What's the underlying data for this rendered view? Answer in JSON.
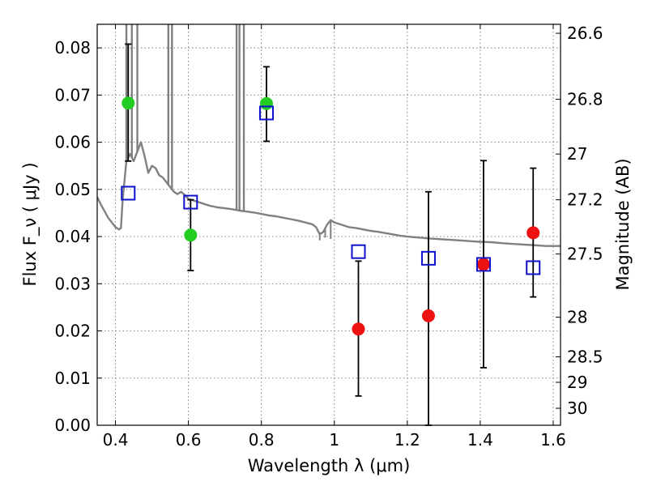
{
  "chart_data": {
    "type": "scatter",
    "xlabel": "Wavelength  λ (μm)",
    "ylabel": "Flux  F_ν  ( μJy )",
    "ylabel_right": "Magnitude (AB)",
    "xlim": [
      0.35,
      1.62
    ],
    "ylim": [
      0.0,
      0.085
    ],
    "grid": true,
    "x_ticks": [
      0.4,
      0.6,
      0.8,
      1.0,
      1.2,
      1.4,
      1.6
    ],
    "x_tick_labels": [
      "0.4",
      "0.6",
      "0.8",
      "1",
      "1.2",
      "1.4",
      "1.6"
    ],
    "y_ticks": [
      0.0,
      0.01,
      0.02,
      0.03,
      0.04,
      0.05,
      0.06,
      0.07,
      0.08
    ],
    "y_tick_labels": [
      "0.00",
      "0.01",
      "0.02",
      "0.03",
      "0.04",
      "0.05",
      "0.06",
      "0.07",
      "0.08"
    ],
    "right_ticks": [
      {
        "label": "26.6",
        "flux": 0.0831
      },
      {
        "label": "26.8",
        "flux": 0.0691
      },
      {
        "label": "27",
        "flux": 0.0575
      },
      {
        "label": "27.2",
        "flux": 0.0478
      },
      {
        "label": "27.5",
        "flux": 0.0363
      },
      {
        "label": "28",
        "flux": 0.0229
      },
      {
        "label": "28.5",
        "flux": 0.0145
      },
      {
        "label": "29",
        "flux": 0.0091
      },
      {
        "label": "30",
        "flux": 0.0036
      }
    ],
    "series": [
      {
        "marker": "circle",
        "color": "#22cc22",
        "points": [
          {
            "x": 0.435,
            "y": 0.0683,
            "err_low": 0.056,
            "err_high": 0.0808
          },
          {
            "x": 0.606,
            "y": 0.0403,
            "err_low": 0.0328,
            "err_high": 0.0478
          },
          {
            "x": 0.814,
            "y": 0.0682,
            "err_low": 0.0602,
            "err_high": 0.076
          }
        ]
      },
      {
        "marker": "circle",
        "color": "#ee1111",
        "points": [
          {
            "x": 1.066,
            "y": 0.0204,
            "err_low": 0.0062,
            "err_high": 0.0348
          },
          {
            "x": 1.258,
            "y": 0.0232,
            "err_low": 0.0,
            "err_high": 0.0495
          },
          {
            "x": 1.409,
            "y": 0.0341,
            "err_low": 0.0122,
            "err_high": 0.0561
          },
          {
            "x": 1.545,
            "y": 0.0408,
            "err_low": 0.0272,
            "err_high": 0.0545
          }
        ]
      },
      {
        "marker": "square-open",
        "color": "#1111cc",
        "points": [
          {
            "x": 0.435,
            "y": 0.0492
          },
          {
            "x": 0.606,
            "y": 0.0473
          },
          {
            "x": 0.814,
            "y": 0.0662
          },
          {
            "x": 1.066,
            "y": 0.0368
          },
          {
            "x": 1.258,
            "y": 0.0354
          },
          {
            "x": 1.409,
            "y": 0.0341
          },
          {
            "x": 1.545,
            "y": 0.0334
          }
        ]
      }
    ],
    "model_curve": {
      "color": "#808080",
      "points": [
        [
          0.35,
          0.0484
        ],
        [
          0.36,
          0.0468
        ],
        [
          0.38,
          0.044
        ],
        [
          0.4,
          0.042
        ],
        [
          0.41,
          0.0415
        ],
        [
          0.415,
          0.0418
        ],
        [
          0.42,
          0.048
        ],
        [
          0.425,
          0.052
        ],
        [
          0.43,
          0.056
        ],
        [
          0.44,
          0.0575
        ],
        [
          0.45,
          0.056
        ],
        [
          0.46,
          0.058
        ],
        [
          0.47,
          0.06
        ],
        [
          0.48,
          0.057
        ],
        [
          0.49,
          0.0535
        ],
        [
          0.5,
          0.055
        ],
        [
          0.51,
          0.0545
        ],
        [
          0.52,
          0.053
        ],
        [
          0.53,
          0.0525
        ],
        [
          0.54,
          0.0515
        ],
        [
          0.55,
          0.0505
        ],
        [
          0.56,
          0.0495
        ],
        [
          0.57,
          0.049
        ],
        [
          0.58,
          0.0495
        ],
        [
          0.59,
          0.0488
        ],
        [
          0.6,
          0.048
        ],
        [
          0.62,
          0.0475
        ],
        [
          0.64,
          0.047
        ],
        [
          0.66,
          0.0465
        ],
        [
          0.68,
          0.0462
        ],
        [
          0.7,
          0.046
        ],
        [
          0.72,
          0.0458
        ],
        [
          0.74,
          0.0455
        ],
        [
          0.76,
          0.0453
        ],
        [
          0.78,
          0.0451
        ],
        [
          0.8,
          0.0448
        ],
        [
          0.82,
          0.0445
        ],
        [
          0.84,
          0.0443
        ],
        [
          0.86,
          0.044
        ],
        [
          0.88,
          0.0437
        ],
        [
          0.9,
          0.0434
        ],
        [
          0.92,
          0.043
        ],
        [
          0.94,
          0.0426
        ],
        [
          0.95,
          0.042
        ],
        [
          0.96,
          0.0405
        ],
        [
          0.97,
          0.041
        ],
        [
          0.98,
          0.0425
        ],
        [
          0.99,
          0.0435
        ],
        [
          1.0,
          0.043
        ],
        [
          1.02,
          0.0425
        ],
        [
          1.04,
          0.042
        ],
        [
          1.06,
          0.0418
        ],
        [
          1.08,
          0.0415
        ],
        [
          1.1,
          0.0412
        ],
        [
          1.12,
          0.041
        ],
        [
          1.15,
          0.0406
        ],
        [
          1.18,
          0.0402
        ],
        [
          1.2,
          0.04
        ],
        [
          1.23,
          0.0398
        ],
        [
          1.26,
          0.0396
        ],
        [
          1.3,
          0.0394
        ],
        [
          1.34,
          0.0392
        ],
        [
          1.38,
          0.039
        ],
        [
          1.4,
          0.0389
        ],
        [
          1.43,
          0.0388
        ],
        [
          1.46,
          0.0386
        ],
        [
          1.5,
          0.0384
        ],
        [
          1.54,
          0.0382
        ],
        [
          1.58,
          0.038
        ],
        [
          1.62,
          0.038
        ]
      ],
      "spikes": [
        {
          "x": 0.43,
          "y_top": 0.085
        },
        {
          "x": 0.445,
          "y_top": 0.085
        },
        {
          "x": 0.46,
          "y_top": 0.085
        },
        {
          "x": 0.545,
          "y_top": 0.085
        },
        {
          "x": 0.555,
          "y_top": 0.085
        },
        {
          "x": 0.732,
          "y_top": 0.085
        },
        {
          "x": 0.74,
          "y_top": 0.085
        },
        {
          "x": 0.752,
          "y_top": 0.085
        }
      ],
      "dips": [
        {
          "x": 0.96,
          "y_low": 0.0392
        },
        {
          "x": 0.975,
          "y_low": 0.0398
        },
        {
          "x": 0.99,
          "y_low": 0.0395
        }
      ]
    }
  }
}
